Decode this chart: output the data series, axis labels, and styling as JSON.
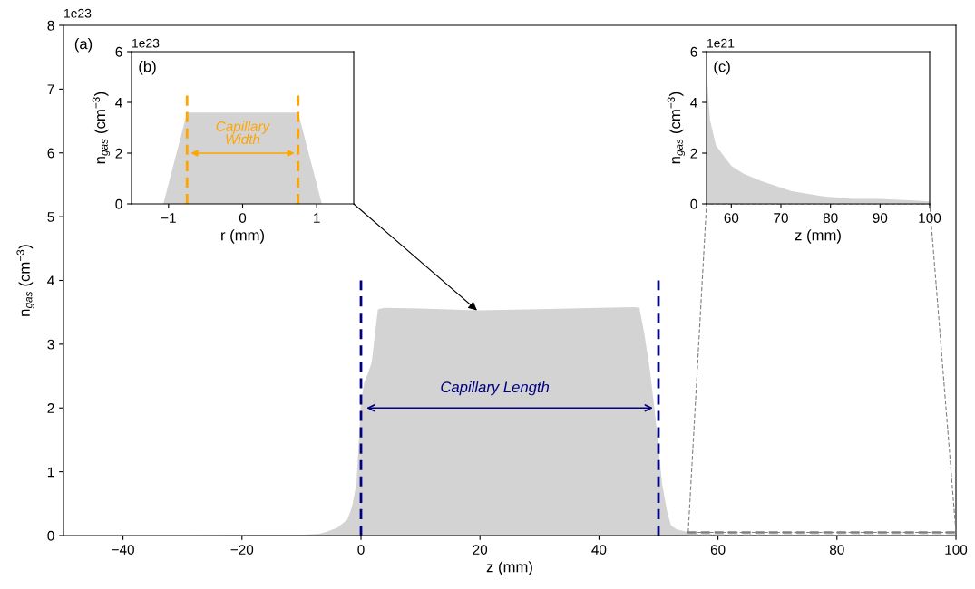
{
  "chart_data": [
    {
      "type": "area",
      "xlabel": "z (mm)",
      "ylabel": "n$_{gas}$ (cm$^{−3}$)",
      "x": [
        -50,
        -30,
        -15,
        -10,
        -7,
        -5.8,
        -4,
        -2.3,
        -1.5,
        -0.75,
        0,
        0.56,
        1.2,
        1.8,
        2.4,
        2.85,
        4,
        10,
        19.7,
        30,
        40,
        46,
        46.8,
        47.6,
        48.6,
        49.6,
        50.6,
        51.4,
        52.1,
        53,
        54.7,
        55,
        56.9,
        60,
        66,
        72,
        80,
        90,
        100
      ],
      "series": [
        {
          "color": "#d3d3d3",
          "values": [
            0,
            0,
            0.01,
            0.01,
            0.03,
            0.06,
            0.12,
            0.25,
            0.45,
            0.82,
            2.1,
            2.4,
            2.55,
            2.71,
            3.2,
            3.55,
            3.57,
            3.56,
            3.53,
            3.55,
            3.57,
            3.58,
            3.57,
            3.18,
            2.57,
            1.76,
            0.82,
            0.4,
            0.16,
            0.1,
            0.06,
            0.05,
            0.02,
            0.02,
            0.01,
            0,
            0,
            0,
            0
          ]
        }
      ],
      "xlim": [
        -50,
        100
      ],
      "xticks": [
        -40,
        -20,
        0,
        20,
        40,
        60,
        80,
        100
      ],
      "ylim": [
        0,
        8
      ],
      "yticks": [
        0,
        1,
        2,
        3,
        4,
        5,
        6,
        7,
        8
      ],
      "ref_lines": [
        {
          "axis": "x",
          "value": 0,
          "color": "#000080",
          "line_style": "dashed"
        },
        {
          "axis": "x",
          "value": 50,
          "color": "#000080",
          "line_style": "dashed"
        }
      ],
      "annotations": [
        "1e23",
        "(a)",
        "Capillary Length"
      ]
    },
    {
      "type": "area",
      "xlabel": "r (mm)",
      "ylabel": "n$_{gas}$ (cm$^{−3}$)",
      "x": [
        -1.5,
        -1.07,
        -0.75,
        0.75,
        1.07,
        1.5
      ],
      "series": [
        {
          "color": "#d3d3d3",
          "values": [
            0,
            0,
            3.6,
            3.6,
            0,
            0
          ]
        }
      ],
      "xlim": [
        -1.5,
        1.5
      ],
      "xticks": [
        -1,
        0,
        1
      ],
      "ylim": [
        0,
        6
      ],
      "yticks": [
        0,
        2,
        4,
        6
      ],
      "ref_lines": [
        {
          "axis": "x",
          "value": -0.75,
          "color": "#ffa500",
          "line_style": "dashed"
        },
        {
          "axis": "x",
          "value": 0.75,
          "color": "#ffa500",
          "line_style": "dashed"
        }
      ],
      "annotations": [
        "1e23",
        "(b)",
        "Capillary\nWidth"
      ]
    },
    {
      "type": "area",
      "xlabel": "z (mm)",
      "ylabel": "n$_{gas}$ (cm$^{−3}$)",
      "x": [
        55,
        55.7,
        56.9,
        58.8,
        60,
        62.4,
        66,
        72.2,
        78.3,
        84.4,
        90,
        100
      ],
      "series": [
        {
          "color": "#d3d3d3",
          "values": [
            5.3,
            3.3,
            2.3,
            1.8,
            1.5,
            1.2,
            0.9,
            0.5,
            0.3,
            0.2,
            0.2,
            0.1
          ]
        }
      ],
      "xlim": [
        55,
        100
      ],
      "xticks": [
        60,
        70,
        80,
        90,
        100
      ],
      "ylim": [
        0,
        6
      ],
      "yticks": [
        0,
        2,
        4,
        6
      ],
      "annotations": [
        "1e21",
        "(c)"
      ]
    }
  ]
}
